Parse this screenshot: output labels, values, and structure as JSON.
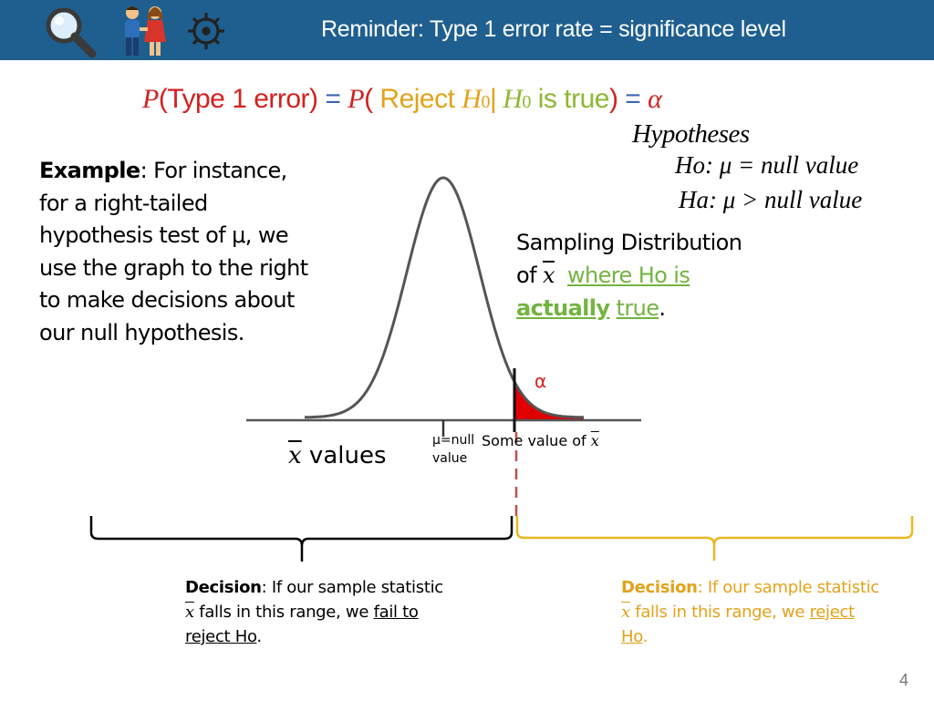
{
  "header": {
    "title": "Reminder: Type 1 error rate = significance level",
    "icons": [
      "magnifying-glass-icon",
      "couple-icon",
      "gear-icon"
    ],
    "background": "#1f5f8f"
  },
  "formula": {
    "p1": "P",
    "type1": "(Type 1 error)",
    "eq1": " = ",
    "p2": "P",
    "paren_open": "( ",
    "reject": "Reject ",
    "h0_a": "H",
    "h0_a_sub": "0",
    "bar": "|",
    "h0_b": " H",
    "h0_b_sub": "0",
    "is_true": " is true",
    "paren_close": ")",
    "eq2": " = ",
    "alpha": "α"
  },
  "hypotheses": {
    "title": "Hypotheses",
    "null": "Ho:  μ = null value",
    "alt": "Ha: μ > null value"
  },
  "example": {
    "label": "Example",
    "text": ": For instance, for a right-tailed hypothesis test of μ, we use the graph to the right to make decisions about our null hypothesis."
  },
  "sampling": {
    "line1": "Sampling Distribution",
    "of": "of ",
    "xbar": "x",
    "where": "where Ho is",
    "actually": "actually",
    "true_word": "true",
    "period": "."
  },
  "graph": {
    "alpha_label": "α",
    "mu_label_1": "μ=null",
    "mu_label_2": "value",
    "some_value": "Some value of ",
    "some_value_xbar": "x",
    "x_values_xbar": "x",
    "x_values_label": " values"
  },
  "decision_left": {
    "label": "Decision",
    "text1": ": If our sample statistic ",
    "xbar": "x",
    "text2": "  falls in this range, we ",
    "action": "fail to reject Ho",
    "period": "."
  },
  "decision_right": {
    "label": "Decision",
    "text1": ": If our sample statistic ",
    "xbar": "x",
    "text2": "  falls in this range, we ",
    "action": "reject Ho",
    "period": "."
  },
  "colors": {
    "red": "#d42020",
    "orange": "#e3a21a",
    "yellow_green": "#8db832",
    "green": "#73b441",
    "gold": "#e8b820"
  },
  "page_number": "4"
}
